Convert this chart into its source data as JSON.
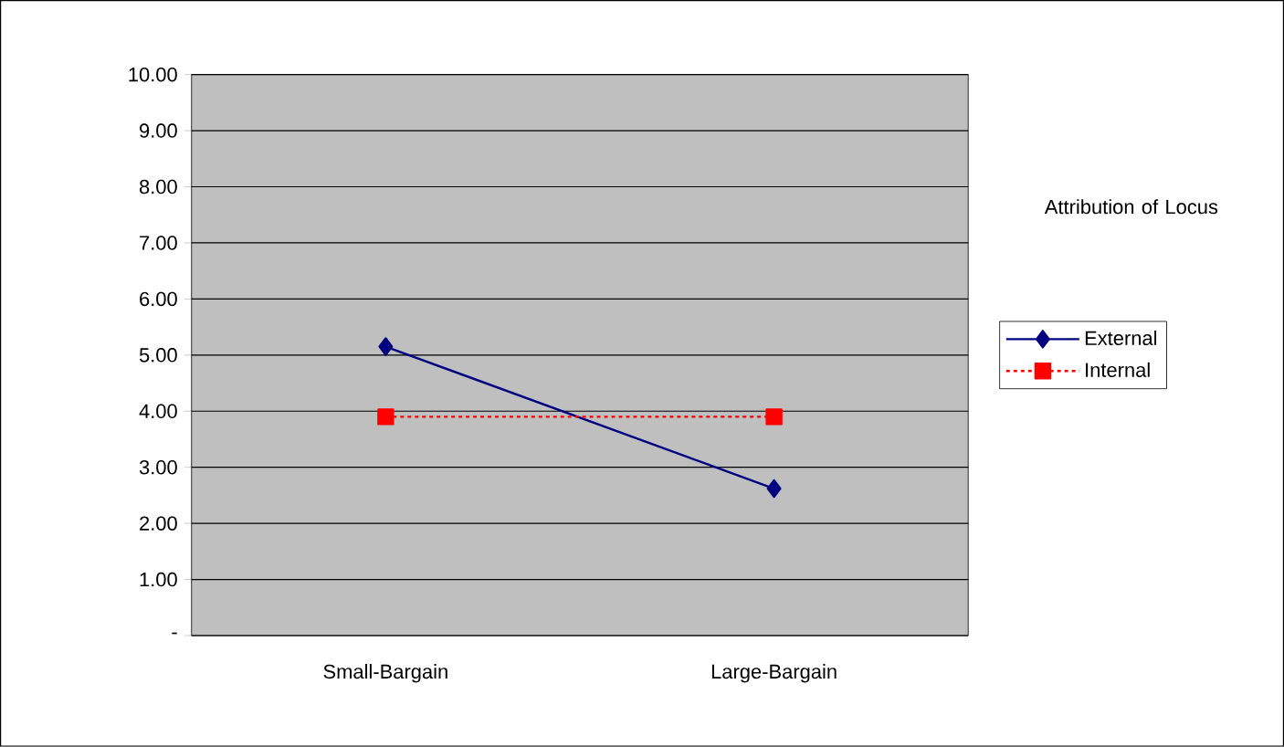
{
  "chart_data": {
    "type": "line",
    "categories": [
      "Small-Bargain",
      "Large-Bargain"
    ],
    "series": [
      {
        "name": "External",
        "color": "#000080",
        "values": [
          5.15,
          2.62
        ],
        "marker": "diamond",
        "line_style": "solid"
      },
      {
        "name": "Internal",
        "color": "#ff0000",
        "values": [
          3.9,
          3.9
        ],
        "marker": "square",
        "line_style": "dotted"
      }
    ],
    "ylim": [
      0,
      10
    ],
    "yticks": [
      {
        "value": 0,
        "label": "-"
      },
      {
        "value": 1,
        "label": "1.00"
      },
      {
        "value": 2,
        "label": "2.00"
      },
      {
        "value": 3,
        "label": "3.00"
      },
      {
        "value": 4,
        "label": "4.00"
      },
      {
        "value": 5,
        "label": "5.00"
      },
      {
        "value": 6,
        "label": "6.00"
      },
      {
        "value": 7,
        "label": "7.00"
      },
      {
        "value": 8,
        "label": "8.00"
      },
      {
        "value": 9,
        "label": "9.00"
      },
      {
        "value": 10,
        "label": "10.00"
      }
    ],
    "grid": "y",
    "legend": "right",
    "legend_title": "Attribution of Locus"
  }
}
